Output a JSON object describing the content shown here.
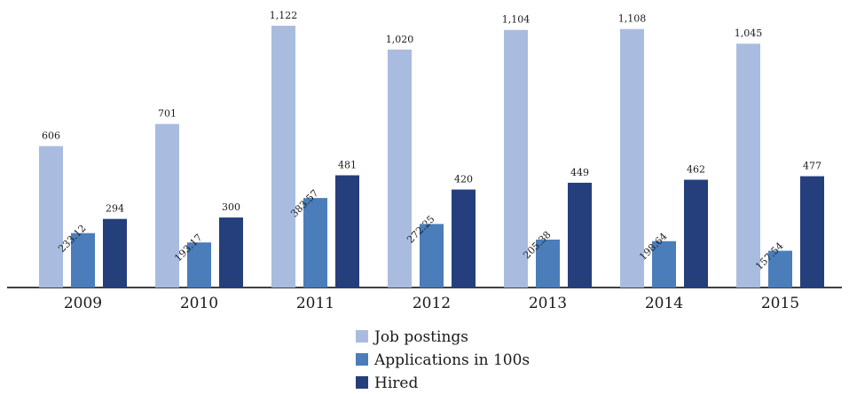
{
  "chart_data": {
    "type": "bar",
    "title": "",
    "xlabel": "",
    "ylabel": "",
    "categories": [
      "2009",
      "2010",
      "2011",
      "2012",
      "2013",
      "2014",
      "2015"
    ],
    "series": [
      {
        "name": "Job postings",
        "color": "#a9bce0",
        "values": [
          606,
          701,
          1122,
          1020,
          1104,
          1108,
          1045
        ],
        "labels": [
          "606",
          "701",
          "1,122",
          "1,020",
          "1,104",
          "1,108",
          "1,045"
        ],
        "label_rotation": 0
      },
      {
        "name": "Applications in 100s",
        "color": "#4a7dba",
        "values": [
          233.12,
          193.17,
          383.57,
          272.25,
          205.38,
          198.64,
          157.54
        ],
        "labels": [
          "233.12",
          "193.17",
          "383.57",
          "272.25",
          "205.38",
          "198.64",
          "157.54"
        ],
        "label_rotation": -45
      },
      {
        "name": "Hired",
        "color": "#243f7c",
        "values": [
          294,
          300,
          481,
          420,
          449,
          462,
          477
        ],
        "labels": [
          "294",
          "300",
          "481",
          "420",
          "449",
          "462",
          "477"
        ],
        "label_rotation": 0
      }
    ],
    "ylim": [
      0,
      1160
    ],
    "grid": false,
    "y_axis_visible": false,
    "legend_position": "bottom-center"
  }
}
